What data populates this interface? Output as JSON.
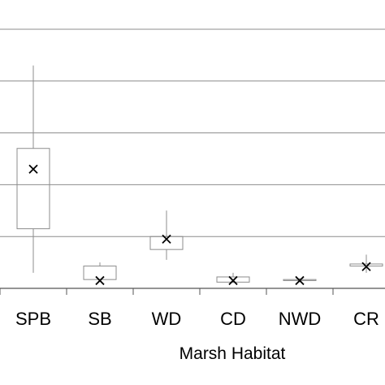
{
  "chart_data": {
    "type": "box",
    "xlabel": "Marsh Habitat",
    "ylabel": "",
    "ylim": [
      0,
      5
    ],
    "grid": true,
    "categories": [
      "SPB",
      "SB",
      "WD",
      "CD",
      "NWD",
      "CR"
    ],
    "boxes": [
      {
        "category": "SPB",
        "whisker_low": 0.3,
        "q1": 1.15,
        "q3": 2.7,
        "whisker_high": 4.3,
        "mean": 2.3
      },
      {
        "category": "SB",
        "whisker_low": 0.17,
        "q1": 0.17,
        "q3": 0.43,
        "whisker_high": 0.5,
        "mean": 0.15
      },
      {
        "category": "WD",
        "whisker_low": 0.55,
        "q1": 0.75,
        "q3": 1.0,
        "whisker_high": 1.5,
        "mean": 0.95
      },
      {
        "category": "CD",
        "whisker_low": 0.1,
        "q1": 0.12,
        "q3": 0.22,
        "whisker_high": 0.3,
        "mean": 0.15
      },
      {
        "category": "NWD",
        "whisker_low": 0.12,
        "q1": 0.15,
        "q3": 0.17,
        "whisker_high": 0.2,
        "mean": 0.15
      },
      {
        "category": "CR",
        "whisker_low": 0.3,
        "q1": 0.43,
        "q3": 0.47,
        "whisker_high": 0.65,
        "mean": 0.42
      }
    ],
    "colors": {
      "box_stroke": "#8c8c8c",
      "grid": "#8c8c8c",
      "axis": "#555555",
      "mean_marker": "#000000"
    }
  }
}
